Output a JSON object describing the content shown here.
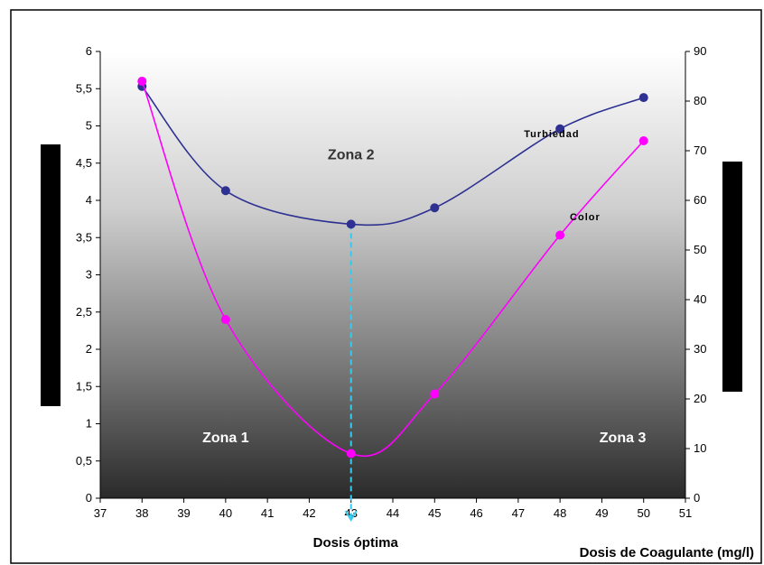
{
  "chart_data": {
    "type": "line",
    "title": "",
    "xlabel": "Dosis de Coagulante (mg/l)",
    "ylabel_left": "",
    "ylabel_right": "",
    "xlim": [
      37,
      51
    ],
    "ylim_left": [
      0,
      6
    ],
    "ylim_right": [
      0,
      90
    ],
    "x_ticks": [
      "37",
      "38",
      "39",
      "40",
      "41",
      "42",
      "43",
      "44",
      "45",
      "46",
      "47",
      "48",
      "49",
      "50",
      "51"
    ],
    "y_left_ticks": [
      "0",
      "0,5",
      "1",
      "1,5",
      "2",
      "2,5",
      "3",
      "3,5",
      "4",
      "4,5",
      "5",
      "5,5",
      "6"
    ],
    "y_right_ticks": [
      "0",
      "10",
      "20",
      "30",
      "40",
      "50",
      "60",
      "70",
      "80",
      "90"
    ],
    "grid": false,
    "legend": "none",
    "series": [
      {
        "name": "Turbiedad",
        "axis": "left",
        "color": "#2E3192",
        "x": [
          38,
          40,
          43,
          45,
          48,
          50
        ],
        "y": [
          5.53,
          4.13,
          3.68,
          3.9,
          4.96,
          5.38
        ]
      },
      {
        "name": "Color",
        "axis": "right",
        "color": "#FF00FF",
        "x": [
          38,
          40,
          43,
          45,
          48,
          50
        ],
        "y": [
          84,
          36,
          9,
          21,
          53,
          72
        ]
      }
    ],
    "annotations": [
      {
        "text": "Zona 1",
        "x": 40,
        "y_left": 0.75,
        "style": "light"
      },
      {
        "text": "Zona 2",
        "x": 43,
        "y_left": 4.55,
        "style": "dark"
      },
      {
        "text": "Zona 3",
        "x": 49.5,
        "y_left": 0.75,
        "style": "light"
      },
      {
        "text": "Dosis óptima",
        "x": 43,
        "style": "below-axis",
        "arrow_color": "#33CCEE"
      }
    ]
  }
}
